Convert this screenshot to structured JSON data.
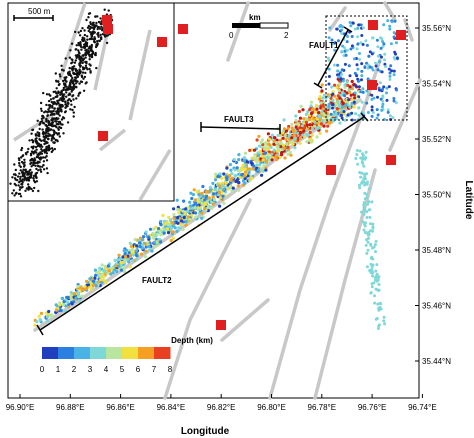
{
  "axes": {
    "x_label": "Longitude",
    "y_label": "Latitude",
    "x_ticks": [
      "96.90°E",
      "96.88°E",
      "96.86°E",
      "96.84°E",
      "96.82°E",
      "96.80°E",
      "96.78°E",
      "96.76°E",
      "96.74°E"
    ],
    "y_ticks": [
      "35.56°N",
      "35.54°N",
      "35.52°N",
      "35.50°N",
      "35.48°N",
      "35.46°N",
      "35.44°N"
    ]
  },
  "faults": {
    "fault1": "FAULT1",
    "fault2": "FAULT2",
    "fault3": "FAULT3"
  },
  "scale_bar": {
    "unit": "km",
    "left_value": "0",
    "right_value": "2"
  },
  "inset": {
    "scale_label": "500 m"
  },
  "depth_legend": {
    "title": "Depth (km)",
    "labels": [
      "0",
      "1",
      "2",
      "3",
      "4",
      "5",
      "6",
      "7",
      "8"
    ],
    "colors": [
      "#1f3fbf",
      "#2a7fe0",
      "#49b3e6",
      "#7fd8d8",
      "#b8e6a0",
      "#f0e040",
      "#f5a020",
      "#e84020",
      "#c01818"
    ]
  },
  "colors": {
    "station": "#e02020",
    "fault_trace": "#c8c8c8"
  }
}
